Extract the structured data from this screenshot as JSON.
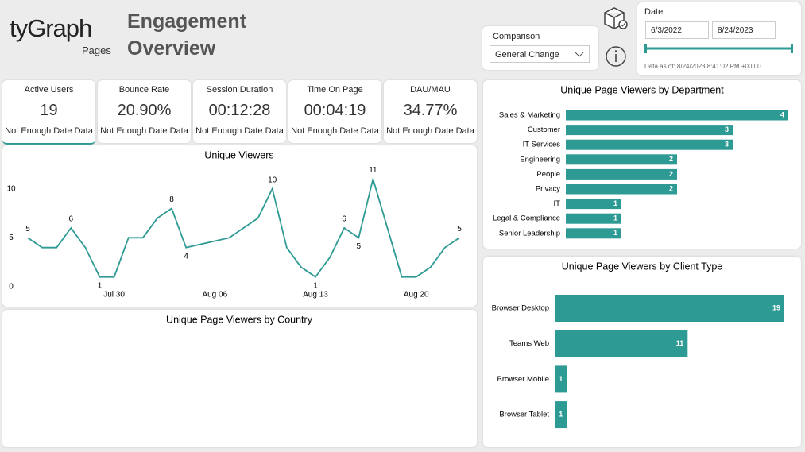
{
  "header": {
    "logo": "tyGraph",
    "logo_sub": "Pages",
    "title": "Engagement Overview"
  },
  "filters": {
    "comparison_label": "Comparison",
    "comparison_value": "General Change",
    "date_label": "Date",
    "start_date": "6/3/2022",
    "end_date": "8/24/2023",
    "data_as_of": "Data as of: 8/24/2023 8:41:02 PM +00:00"
  },
  "kpis": [
    {
      "label": "Active Users",
      "value": "19",
      "note": "Not Enough Date Data"
    },
    {
      "label": "Bounce Rate",
      "value": "20.90%",
      "note": "Not Enough Date Data"
    },
    {
      "label": "Session Duration",
      "value": "00:12:28",
      "note": "Not Enough Date Data"
    },
    {
      "label": "Time On Page",
      "value": "00:04:19",
      "note": "Not Enough Date Data"
    },
    {
      "label": "DAU/MAU",
      "value": "34.77%",
      "note": "Not Enough Date Data"
    }
  ],
  "chart_data": [
    {
      "type": "line",
      "title": "Unique Viewers",
      "color": "#2e9a94",
      "x": [
        "Jul 24",
        "Jul 25",
        "Jul 26",
        "Jul 27",
        "Jul 28",
        "Jul 29",
        "Jul 30",
        "Jul 31",
        "Aug 01",
        "Aug 02",
        "Aug 03",
        "Aug 04",
        "Aug 07",
        "Aug 09",
        "Aug 10",
        "Aug 11",
        "Aug 12",
        "Aug 13",
        "Aug 14",
        "Aug 15",
        "Aug 16",
        "Aug 17",
        "Aug 18",
        "Aug 19",
        "Aug 20",
        "Aug 21",
        "Aug 22",
        "Aug 23"
      ],
      "values": [
        5,
        4,
        4,
        6,
        4,
        1,
        1,
        5,
        5,
        7,
        8,
        4,
        5,
        7,
        10,
        4,
        2,
        1,
        3,
        6,
        5,
        11,
        6,
        1,
        1,
        2,
        4,
        5
      ],
      "value_labels": [
        5,
        null,
        null,
        6,
        null,
        1,
        null,
        null,
        null,
        null,
        8,
        4,
        null,
        null,
        10,
        null,
        null,
        1,
        null,
        6,
        5,
        11,
        null,
        null,
        null,
        null,
        null,
        5
      ],
      "xlim": [
        "Jul 24",
        "Aug 23"
      ],
      "xticks": [
        "Jul 30",
        "Aug 06",
        "Aug 13",
        "Aug 20"
      ],
      "ylim": [
        0,
        12
      ],
      "yticks": [
        0,
        5,
        10
      ]
    },
    {
      "type": "bar",
      "title": "Unique Page Viewers by Department",
      "color": "#2e9a94",
      "categories": [
        "Sales & Marketing",
        "Customer",
        "IT Services",
        "Engineering",
        "People",
        "Privacy",
        "IT",
        "Legal & Compliance",
        "Senior Leadership"
      ],
      "values": [
        4,
        3,
        3,
        2,
        2,
        2,
        1,
        1,
        1
      ],
      "xlim": [
        0,
        4
      ]
    },
    {
      "type": "bar",
      "title": "Unique Page Viewers by Client Type",
      "color": "#2e9a94",
      "categories": [
        "Browser Desktop",
        "Teams Web",
        "Browser Mobile",
        "Browser Tablet"
      ],
      "values": [
        19,
        11,
        1,
        1
      ],
      "xlim": [
        0,
        19
      ]
    },
    {
      "type": "map",
      "title": "Unique Page Viewers by Country"
    }
  ]
}
